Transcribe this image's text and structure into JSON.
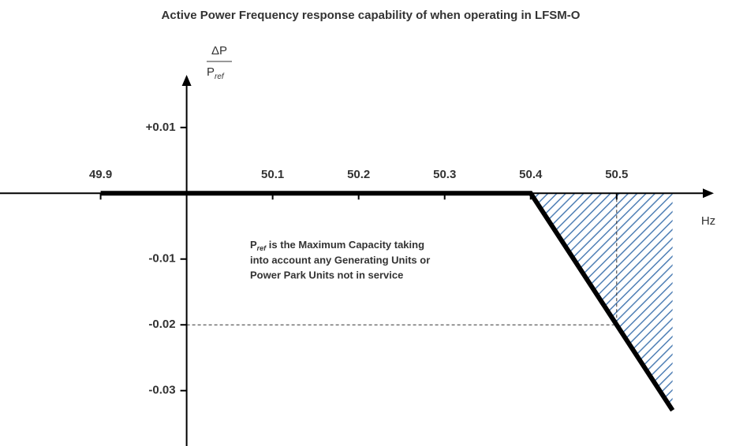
{
  "chart_data": {
    "type": "line",
    "title": "Active Power Frequency response capability of when operating in LFSM-O",
    "y_label": {
      "numerator": "ΔP",
      "denominator": "P",
      "subscript": "ref"
    },
    "x_label": "Hz",
    "annotation": {
      "symbol": "P",
      "subscript": "ref",
      "lines": [
        " is the Maximum Capacity taking",
        "into account  any Generating Units or",
        "Power Park Units  not in service"
      ]
    },
    "x": [
      49.9,
      50.4,
      50.5,
      50.565
    ],
    "series": [
      {
        "color": "#000000",
        "values": [
          0,
          0,
          -0.02,
          -0.033
        ]
      }
    ],
    "hatch_color": "#4f7fb5",
    "guide": {
      "x": 50.5,
      "y": -0.02
    },
    "yaxis_cross": 50,
    "xlim": [
      49.783,
      50.613
    ],
    "ylim": [
      -0.0377,
      0.018
    ],
    "xticks": [
      49.9,
      50.1,
      50.2,
      50.3,
      50.4,
      50.5
    ],
    "yticks": [
      {
        "value": 0.01,
        "label": "+0.01"
      },
      -0.01,
      -0.02,
      -0.03
    ]
  }
}
